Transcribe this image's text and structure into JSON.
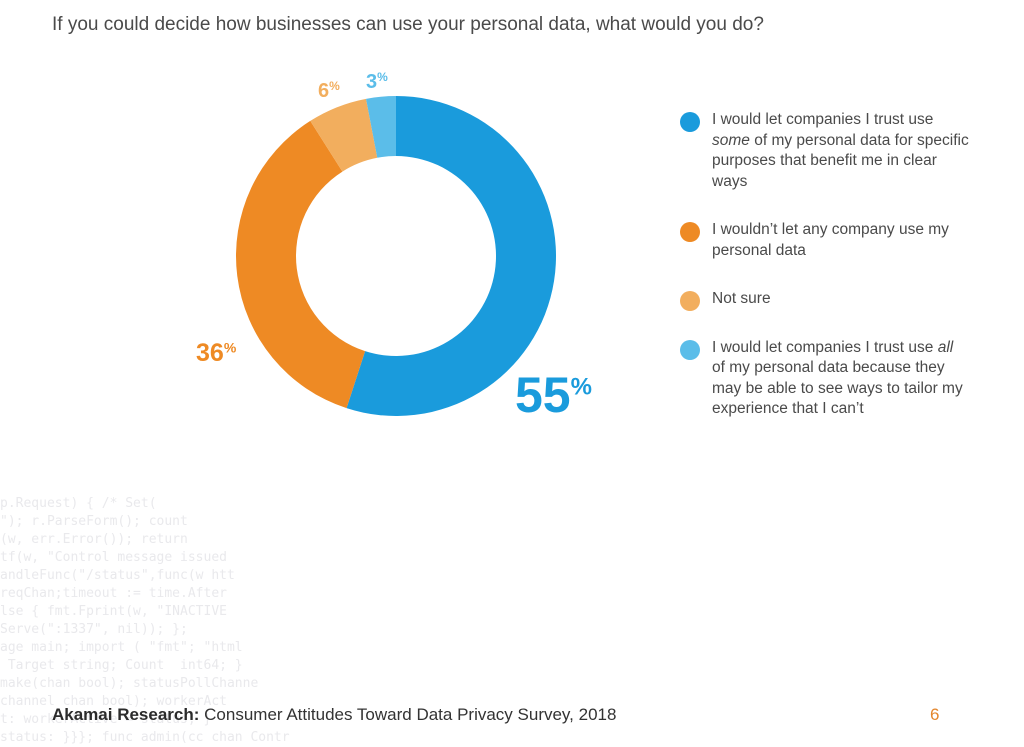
{
  "question": "If you could decide how businesses can use your personal data, what would you do?",
  "chart_data": {
    "type": "pie",
    "variant": "donut",
    "title": "If you could decide how businesses can use your personal data, what would you do?",
    "legend_position": "right",
    "slices": [
      {
        "name": "I would let companies I trust use some of my personal data for specific purposes that benefit me in clear ways",
        "legend_pre": "I would let companies I trust use ",
        "legend_em": "some",
        "legend_post": " of my personal data for specific purposes that benefit me in clear ways",
        "value": 55,
        "label": "55",
        "color": "#1a9bdc"
      },
      {
        "name": "I wouldn’t let any company use my personal data",
        "legend_pre": "I wouldn’t let any company use my personal data",
        "legend_em": "",
        "legend_post": "",
        "value": 36,
        "label": "36",
        "color": "#ee8a24"
      },
      {
        "name": "Not sure",
        "legend_pre": "Not sure",
        "legend_em": "",
        "legend_post": "",
        "value": 6,
        "label": "6",
        "color": "#f2ae5e"
      },
      {
        "name": "I would let companies I trust use all of my personal data because they may be able to see ways to tailor my experience that I can’t",
        "legend_pre": "I would let companies I trust use ",
        "legend_em": "all",
        "legend_post": " of my personal data because they may be able to see ways to tailor my experience that I can’t",
        "value": 3,
        "label": "3",
        "color": "#5bbde9"
      }
    ],
    "percent_sign": "%"
  },
  "footer": {
    "source_bold": "Akamai Research:",
    "source_text": " Consumer Attitudes Toward Data Privacy Survey, 2018",
    "page_number": "6"
  },
  "background_code": [
    "p.Request) { /* Set(",
    "\"); r.ParseForm(); count",
    "(w, err.Error()); return",
    "tf(w, \"Control message issued",
    "andleFunc(\"/status\",func(w htt",
    "reqChan;timeout := time.After",
    "lse { fmt.Fprint(w, \"INACTIVE",
    "Serve(\":1337\", nil)); };",
    "age main; import ( \"fmt\"; \"html",
    " Target string; Count  int64; }",
    "make(chan bool); statusPollChanne",
    "channel chan bool); workerAct",
    "t: workerActive = status; }",
    "status: }}}; func admin(cc chan Contr"
  ]
}
